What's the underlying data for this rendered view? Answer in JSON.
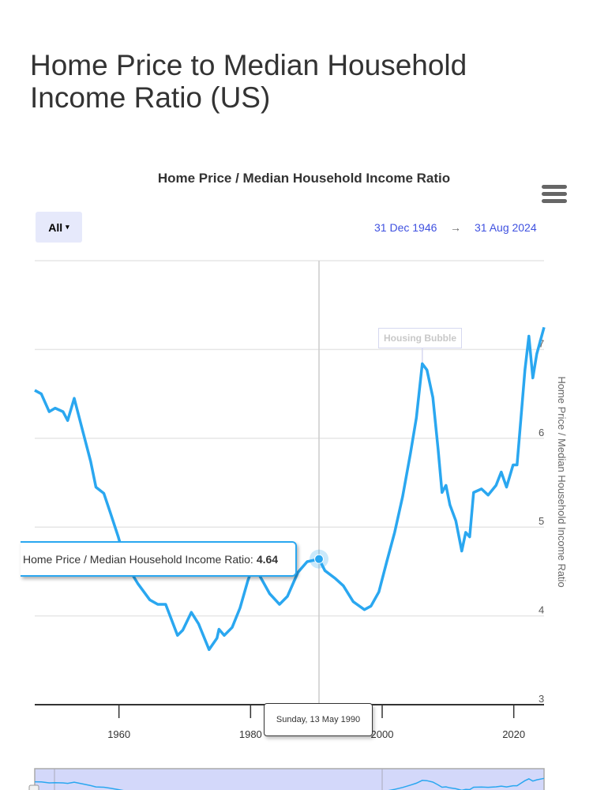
{
  "page_title": "Home Price to Median Household Income Ratio (US)",
  "range_selector": {
    "label": "All",
    "caret": "▾"
  },
  "date_range": {
    "from": "31 Dec 1946",
    "arrow": "→",
    "to": "31 Aug 2024"
  },
  "menu_icon": "hamburger-menu-icon",
  "tooltip": {
    "label": "Home Price / Median Household Income Ratio:",
    "value": "4.64",
    "date": "Sunday, 13 May 1990"
  },
  "colors": {
    "line": "#2aa7f0",
    "accent": "#3f51e0",
    "navigator": "#d3d8fa"
  },
  "chart_data": {
    "type": "line",
    "title": "Home Price / Median Household Income Ratio",
    "xlabel": "",
    "ylabel": "Home Price / Median Household Income Ratio",
    "xlim": [
      1947.2,
      2024.6
    ],
    "ylim": [
      3,
      8
    ],
    "x_ticks": [
      "1960",
      "1980",
      "2000",
      "2020"
    ],
    "x_tick_values": [
      1960,
      1980,
      2000,
      2020
    ],
    "y_ticks": [
      "3",
      "4",
      "5",
      "6",
      "7"
    ],
    "y_tick_values": [
      3,
      4,
      5,
      6,
      7
    ],
    "grid": true,
    "annotations": [
      {
        "text": "Housing Bubble",
        "x": 2006.1,
        "y": 6.84
      }
    ],
    "highlight": {
      "x": 1990.4,
      "y": 4.64
    },
    "series": [
      {
        "name": "Home Price / Median Household Income Ratio",
        "x": [
          1947.2,
          1948.2,
          1949.4,
          1950.3,
          1951.5,
          1952.2,
          1953.2,
          1954.6,
          1955.7,
          1956.5,
          1957.7,
          1958.7,
          1959.9,
          1961.1,
          1962.9,
          1964.7,
          1965.9,
          1967.1,
          1968.9,
          1969.7,
          1971,
          1972.1,
          1973.7,
          1974.9,
          1975.2,
          1976,
          1977.2,
          1978.4,
          1979.6,
          1980.2,
          1981.4,
          1982.9,
          1984.4,
          1985.6,
          1987.2,
          1988.6,
          1990.4,
          1991.3,
          1992.9,
          1994.1,
          1995.6,
          1997.3,
          1998.3,
          1999.5,
          2000.7,
          2001.9,
          2003.1,
          2004.3,
          2005.2,
          2006.1,
          2006.8,
          2007.7,
          2008.5,
          2009.1,
          2009.7,
          2010.3,
          2011.2,
          2012.1,
          2012.7,
          2013.3,
          2013.9,
          2015.1,
          2016.1,
          2017.3,
          2018.1,
          2018.9,
          2019.9,
          2020.5,
          2021.1,
          2021.7,
          2022.3,
          2022.9,
          2023.5,
          2024.6
        ],
        "values": [
          6.54,
          6.5,
          6.3,
          6.34,
          6.3,
          6.2,
          6.45,
          6.05,
          5.74,
          5.45,
          5.38,
          5.16,
          4.89,
          4.58,
          4.36,
          4.18,
          4.13,
          4.13,
          3.78,
          3.84,
          4.04,
          3.91,
          3.62,
          3.75,
          3.85,
          3.78,
          3.87,
          4.09,
          4.4,
          4.52,
          4.45,
          4.25,
          4.13,
          4.22,
          4.49,
          4.61,
          4.64,
          4.51,
          4.42,
          4.34,
          4.16,
          4.07,
          4.11,
          4.27,
          4.61,
          4.94,
          5.34,
          5.83,
          6.23,
          6.84,
          6.77,
          6.46,
          5.88,
          5.39,
          5.47,
          5.25,
          5.07,
          4.73,
          4.94,
          4.89,
          5.39,
          5.43,
          5.36,
          5.47,
          5.62,
          5.45,
          5.7,
          5.7,
          6.23,
          6.77,
          7.15,
          6.68,
          6.95,
          7.25
        ]
      }
    ]
  }
}
